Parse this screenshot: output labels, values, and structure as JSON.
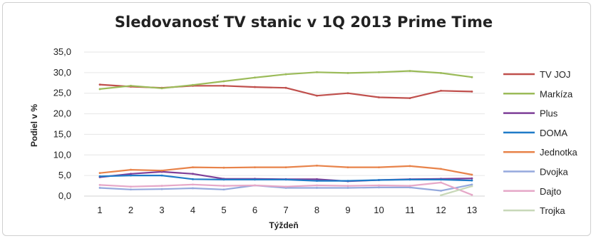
{
  "chart_data": {
    "type": "line",
    "title": "Sledovanosť TV stanic v 1Q 2013 Prime Time",
    "xlabel": "Týždeň",
    "ylabel": "Podiel v %",
    "x": [
      1,
      2,
      3,
      4,
      5,
      6,
      7,
      8,
      9,
      10,
      11,
      12,
      13
    ],
    "y_ticks": [
      "0,0",
      "5,0",
      "10,0",
      "15,0",
      "20,0",
      "25,0",
      "30,0",
      "35,0"
    ],
    "ylim": [
      0,
      35
    ],
    "grid": true,
    "legend": "right",
    "series": [
      {
        "name": "TV JOJ",
        "color": "#c0504d",
        "values": [
          27.1,
          26.6,
          26.3,
          26.8,
          26.8,
          26.5,
          26.3,
          24.4,
          25.0,
          24.0,
          23.8,
          25.6,
          25.4
        ]
      },
      {
        "name": "Markíza",
        "color": "#9bbb59",
        "values": [
          26.0,
          26.8,
          26.2,
          27.0,
          27.9,
          28.8,
          29.6,
          30.1,
          29.9,
          30.1,
          30.4,
          29.9,
          28.9
        ]
      },
      {
        "name": "Plus",
        "color": "#7e3f98",
        "values": [
          4.6,
          5.4,
          5.9,
          5.4,
          4.2,
          4.2,
          4.1,
          4.1,
          3.6,
          3.9,
          4.1,
          4.2,
          4.3
        ]
      },
      {
        "name": "DOMA",
        "color": "#1f7bc8",
        "values": [
          4.8,
          5.0,
          5.0,
          4.1,
          4.0,
          4.0,
          4.0,
          3.7,
          3.7,
          3.9,
          4.0,
          4.0,
          3.8
        ]
      },
      {
        "name": "Jednotka",
        "color": "#e8834a",
        "values": [
          5.6,
          6.4,
          6.2,
          7.0,
          6.9,
          7.0,
          7.0,
          7.4,
          7.0,
          7.0,
          7.3,
          6.6,
          5.2
        ]
      },
      {
        "name": "Dvojka",
        "color": "#95a9dd",
        "values": [
          2.0,
          1.6,
          1.7,
          1.9,
          1.6,
          2.6,
          2.0,
          2.0,
          2.0,
          2.1,
          2.1,
          1.3,
          2.8
        ]
      },
      {
        "name": "Dajto",
        "color": "#e6a8c8",
        "values": [
          2.7,
          2.3,
          2.5,
          2.8,
          2.5,
          2.6,
          2.3,
          2.6,
          2.5,
          2.6,
          2.5,
          3.3,
          0.3
        ]
      },
      {
        "name": "Trojka",
        "color": "#c8d8b8",
        "values": [
          null,
          null,
          null,
          null,
          null,
          null,
          null,
          null,
          null,
          null,
          null,
          0.2,
          2.4
        ]
      }
    ]
  }
}
